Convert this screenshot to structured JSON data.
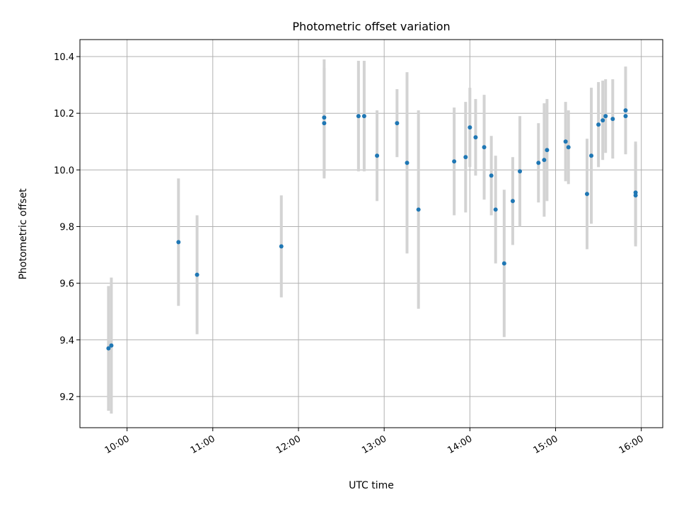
{
  "chart_data": {
    "type": "scatter",
    "title": "Photometric offset variation",
    "xlabel": "UTC time",
    "ylabel": "Photometric offset",
    "x_ticks": [
      "10:00",
      "11:00",
      "12:00",
      "13:00",
      "14:00",
      "15:00",
      "16:00"
    ],
    "y_ticks": [
      "9.2",
      "9.4",
      "9.6",
      "9.8",
      "10.0",
      "10.2",
      "10.4"
    ],
    "y_tick_values": [
      9.2,
      9.4,
      9.6,
      9.8,
      10.0,
      10.2,
      10.4
    ],
    "xlim": [
      "09:27",
      "16:15"
    ],
    "ylim": [
      9.09,
      10.46
    ],
    "grid": true,
    "legend": "none",
    "marker_color": "#1f77b4",
    "errorbar_color": "#d3d3d3",
    "points": [
      {
        "t": "09:47",
        "y": 9.37,
        "err": 0.22
      },
      {
        "t": "09:49",
        "y": 9.38,
        "err": 0.24
      },
      {
        "t": "10:36",
        "y": 9.745,
        "err": 0.225
      },
      {
        "t": "10:49",
        "y": 9.63,
        "err": 0.21
      },
      {
        "t": "11:48",
        "y": 9.73,
        "err": 0.18
      },
      {
        "t": "12:18",
        "y": 10.185,
        "err": 0.205
      },
      {
        "t": "12:18",
        "y": 10.165,
        "err": 0.195
      },
      {
        "t": "12:42",
        "y": 10.19,
        "err": 0.195
      },
      {
        "t": "12:46",
        "y": 10.19,
        "err": 0.195
      },
      {
        "t": "12:55",
        "y": 10.05,
        "err": 0.16
      },
      {
        "t": "13:09",
        "y": 10.165,
        "err": 0.12
      },
      {
        "t": "13:16",
        "y": 10.025,
        "err": 0.32
      },
      {
        "t": "13:24",
        "y": 9.86,
        "err": 0.35
      },
      {
        "t": "13:49",
        "y": 10.03,
        "err": 0.19
      },
      {
        "t": "13:57",
        "y": 10.045,
        "err": 0.195
      },
      {
        "t": "14:00",
        "y": 10.15,
        "err": 0.14
      },
      {
        "t": "14:04",
        "y": 10.115,
        "err": 0.135
      },
      {
        "t": "14:10",
        "y": 10.08,
        "err": 0.185
      },
      {
        "t": "14:15",
        "y": 9.98,
        "err": 0.14
      },
      {
        "t": "14:18",
        "y": 9.86,
        "err": 0.19
      },
      {
        "t": "14:24",
        "y": 9.67,
        "err": 0.26
      },
      {
        "t": "14:30",
        "y": 9.89,
        "err": 0.155
      },
      {
        "t": "14:35",
        "y": 9.995,
        "err": 0.195
      },
      {
        "t": "14:48",
        "y": 10.025,
        "err": 0.14
      },
      {
        "t": "14:52",
        "y": 10.035,
        "err": 0.2
      },
      {
        "t": "14:54",
        "y": 10.07,
        "err": 0.18
      },
      {
        "t": "15:07",
        "y": 10.1,
        "err": 0.14
      },
      {
        "t": "15:09",
        "y": 10.08,
        "err": 0.13
      },
      {
        "t": "15:22",
        "y": 9.915,
        "err": 0.195
      },
      {
        "t": "15:25",
        "y": 10.05,
        "err": 0.24
      },
      {
        "t": "15:30",
        "y": 10.16,
        "err": 0.15
      },
      {
        "t": "15:33",
        "y": 10.175,
        "err": 0.14
      },
      {
        "t": "15:35",
        "y": 10.19,
        "err": 0.13
      },
      {
        "t": "15:40",
        "y": 10.18,
        "err": 0.14
      },
      {
        "t": "15:49",
        "y": 10.21,
        "err": 0.155
      },
      {
        "t": "15:49",
        "y": 10.19,
        "err": 0.13
      },
      {
        "t": "15:56",
        "y": 9.92,
        "err": 0.18
      },
      {
        "t": "15:56",
        "y": 9.91,
        "err": 0.18
      }
    ]
  }
}
